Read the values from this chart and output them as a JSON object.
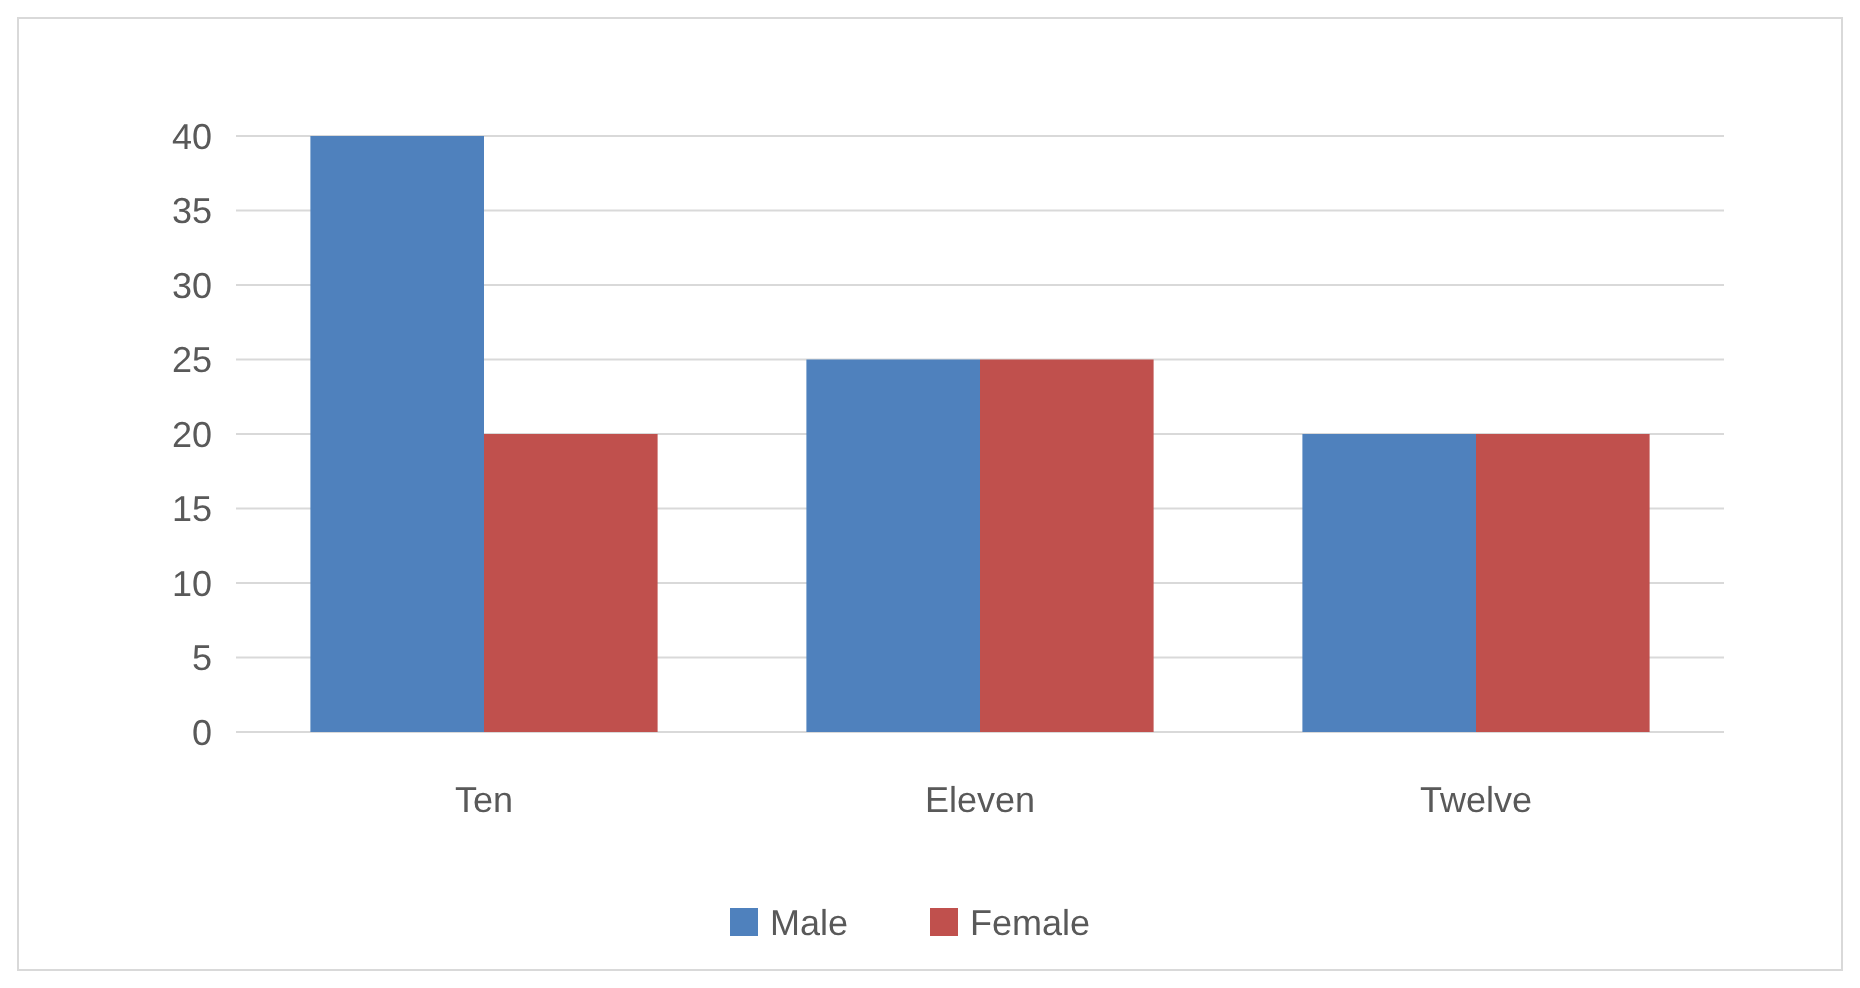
{
  "chart_data": {
    "type": "bar",
    "categories": [
      "Ten",
      "Eleven",
      "Twelve"
    ],
    "series": [
      {
        "name": "Male",
        "color": "#4f81bd",
        "values": [
          40,
          25,
          20
        ]
      },
      {
        "name": "Female",
        "color": "#c0504d",
        "values": [
          20,
          25,
          20
        ]
      }
    ],
    "ylim": [
      0,
      40
    ],
    "yticks": [
      0,
      5,
      10,
      15,
      20,
      25,
      30,
      35,
      40
    ],
    "grid": "y",
    "legend": "bottom"
  }
}
